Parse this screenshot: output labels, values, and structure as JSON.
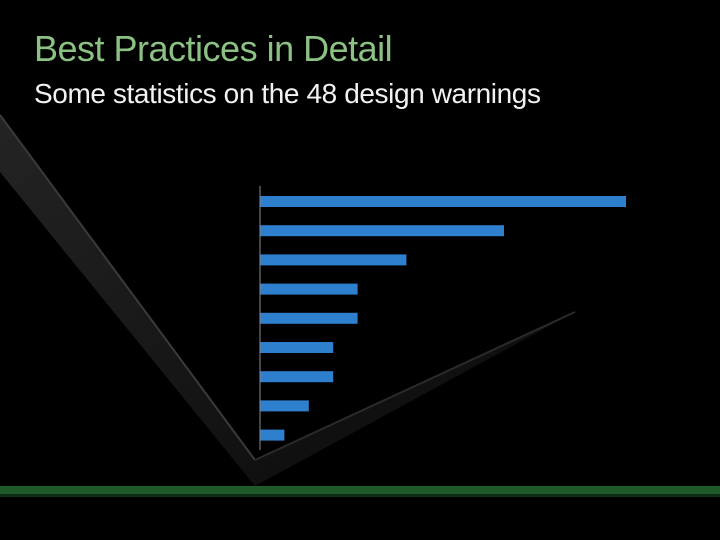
{
  "slide": {
    "title": "Best Practices in Detail",
    "subtitle": "Some statistics on the 48 design warnings"
  },
  "colors": {
    "title": "#8cc184",
    "subtitle": "#f2f2f2",
    "bar": "#2f7fcf",
    "axis": "#8a8a8a",
    "footer": "#1e5a2a"
  },
  "chart_data": {
    "type": "bar",
    "orientation": "horizontal",
    "categories": [
      "",
      "",
      "",
      "",
      "",
      "",
      "",
      "",
      ""
    ],
    "values": [
      15,
      10,
      6,
      4,
      4,
      3,
      3,
      2,
      1
    ],
    "xlim": [
      0,
      15
    ],
    "grid": false,
    "title": "",
    "xlabel": "",
    "ylabel": ""
  }
}
